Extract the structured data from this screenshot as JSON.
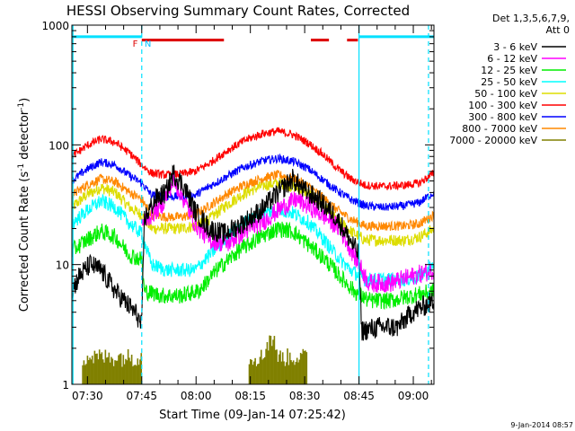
{
  "chart_data": {
    "type": "line",
    "title": "HESSI Observing Summary Count Rates, Corrected",
    "xlabel": "Start Time (09-Jan-14 07:25:42)",
    "ylabel_main": "Corrected Count Rate (s",
    "ylabel_sup1": "-1",
    "ylabel_mid": " detector",
    "ylabel_sup2": "-1",
    "ylabel_end": ")",
    "footer": "9-Jan-2014 08:57",
    "yscale": "log",
    "ylim": [
      1,
      1000
    ],
    "xlim_minutes": [
      0,
      100
    ],
    "x_unit_note_minutes_after_07_25_42": true,
    "xticks": [
      {
        "t": 4.3,
        "label": "07:30"
      },
      {
        "t": 19.3,
        "label": "07:45"
      },
      {
        "t": 34.3,
        "label": "08:00"
      },
      {
        "t": 49.3,
        "label": "08:15"
      },
      {
        "t": 64.3,
        "label": "08:30"
      },
      {
        "t": 79.3,
        "label": "08:45"
      },
      {
        "t": 94.3,
        "label": "09:00"
      }
    ],
    "yticks": [
      {
        "v": 1,
        "label": "1"
      },
      {
        "v": 10,
        "label": "10"
      },
      {
        "v": 100,
        "label": "100"
      },
      {
        "v": 1000,
        "label": "1000"
      }
    ],
    "legend": {
      "header1": "Det 1,3,5,6,7,9,",
      "header2": "Att 0",
      "placement": "outside-right"
    },
    "series": [
      {
        "name": "3 - 6 keV",
        "color": "#000000",
        "noise": 0.09,
        "points": [
          [
            0,
            6
          ],
          [
            2,
            8
          ],
          [
            5,
            10
          ],
          [
            8,
            9
          ],
          [
            12,
            6
          ],
          [
            18,
            3.8
          ],
          [
            19.3,
            3
          ],
          [
            20,
            24
          ],
          [
            23,
            35
          ],
          [
            26,
            40
          ],
          [
            28,
            58
          ],
          [
            31,
            45
          ],
          [
            34,
            28
          ],
          [
            38,
            20
          ],
          [
            42,
            18
          ],
          [
            47,
            22
          ],
          [
            52,
            28
          ],
          [
            57,
            40
          ],
          [
            61,
            52
          ],
          [
            64,
            42
          ],
          [
            68,
            35
          ],
          [
            73,
            25
          ],
          [
            78,
            14
          ],
          [
            79.3,
            12
          ],
          [
            80,
            2.8
          ],
          [
            85,
            3
          ],
          [
            90,
            3
          ],
          [
            94,
            4
          ],
          [
            100,
            5
          ]
        ]
      },
      {
        "name": "6 - 12 keV",
        "color": "#ff00ff",
        "noise": 0.08,
        "points": [
          [
            19.3,
            22
          ],
          [
            22,
            26
          ],
          [
            25,
            32
          ],
          [
            28,
            50
          ],
          [
            30,
            40
          ],
          [
            34,
            22
          ],
          [
            38,
            16
          ],
          [
            43,
            15
          ],
          [
            48,
            19
          ],
          [
            53,
            23
          ],
          [
            58,
            30
          ],
          [
            62,
            35
          ],
          [
            66,
            30
          ],
          [
            70,
            25
          ],
          [
            74,
            20
          ],
          [
            79.3,
            10
          ],
          [
            82,
            7
          ],
          [
            88,
            7
          ],
          [
            94,
            8
          ],
          [
            100,
            9
          ]
        ]
      },
      {
        "name": "12 - 25 keV",
        "color": "#00ee00",
        "noise": 0.07,
        "points": [
          [
            0,
            13
          ],
          [
            4,
            16
          ],
          [
            8,
            19
          ],
          [
            12,
            17
          ],
          [
            16,
            12
          ],
          [
            19.3,
            11
          ],
          [
            20,
            6
          ],
          [
            25,
            5.5
          ],
          [
            30,
            5.5
          ],
          [
            35,
            6
          ],
          [
            40,
            9
          ],
          [
            46,
            13
          ],
          [
            52,
            17
          ],
          [
            57,
            20
          ],
          [
            61,
            19
          ],
          [
            65,
            15
          ],
          [
            70,
            11
          ],
          [
            74,
            8
          ],
          [
            78,
            6
          ],
          [
            82,
            5
          ],
          [
            88,
            5
          ],
          [
            94,
            5.5
          ],
          [
            100,
            6
          ]
        ]
      },
      {
        "name": "25 - 50 keV",
        "color": "#00ffff",
        "noise": 0.06,
        "points": [
          [
            0,
            22
          ],
          [
            4,
            28
          ],
          [
            8,
            34
          ],
          [
            12,
            30
          ],
          [
            16,
            22
          ],
          [
            19.3,
            18
          ],
          [
            22,
            10
          ],
          [
            26,
            9
          ],
          [
            30,
            9
          ],
          [
            34,
            9
          ],
          [
            38,
            12
          ],
          [
            43,
            17
          ],
          [
            48,
            23
          ],
          [
            53,
            27
          ],
          [
            57,
            29
          ],
          [
            61,
            27
          ],
          [
            65,
            23
          ],
          [
            69,
            17
          ],
          [
            73,
            12
          ],
          [
            77,
            9
          ],
          [
            81,
            7.5
          ],
          [
            86,
            7.5
          ],
          [
            92,
            7.5
          ],
          [
            96,
            8
          ],
          [
            100,
            10
          ]
        ]
      },
      {
        "name": "50 - 100 keV",
        "color": "#dddd00",
        "noise": 0.05,
        "points": [
          [
            0,
            30
          ],
          [
            4,
            38
          ],
          [
            8,
            44
          ],
          [
            12,
            40
          ],
          [
            16,
            30
          ],
          [
            19.3,
            26
          ],
          [
            22,
            20
          ],
          [
            26,
            20
          ],
          [
            30,
            20
          ],
          [
            34,
            21
          ],
          [
            38,
            24
          ],
          [
            43,
            32
          ],
          [
            48,
            40
          ],
          [
            53,
            46
          ],
          [
            57,
            48
          ],
          [
            61,
            45
          ],
          [
            65,
            40
          ],
          [
            69,
            32
          ],
          [
            73,
            24
          ],
          [
            77,
            19
          ],
          [
            81,
            16
          ],
          [
            86,
            16
          ],
          [
            92,
            16
          ],
          [
            96,
            17
          ],
          [
            100,
            20
          ]
        ]
      },
      {
        "name": "100 - 300 keV",
        "color": "#ff0000",
        "noise": 0.035,
        "points": [
          [
            0,
            80
          ],
          [
            4,
            98
          ],
          [
            8,
            112
          ],
          [
            12,
            105
          ],
          [
            16,
            85
          ],
          [
            19.3,
            68
          ],
          [
            22,
            58
          ],
          [
            26,
            56
          ],
          [
            30,
            57
          ],
          [
            34,
            60
          ],
          [
            38,
            70
          ],
          [
            43,
            90
          ],
          [
            48,
            110
          ],
          [
            53,
            125
          ],
          [
            57,
            130
          ],
          [
            61,
            122
          ],
          [
            65,
            105
          ],
          [
            69,
            85
          ],
          [
            73,
            65
          ],
          [
            77,
            52
          ],
          [
            81,
            46
          ],
          [
            86,
            45
          ],
          [
            92,
            46
          ],
          [
            96,
            48
          ],
          [
            100,
            58
          ]
        ]
      },
      {
        "name": "300 - 800 keV",
        "color": "#0000ff",
        "noise": 0.035,
        "points": [
          [
            0,
            50
          ],
          [
            4,
            62
          ],
          [
            8,
            72
          ],
          [
            12,
            68
          ],
          [
            16,
            55
          ],
          [
            19.3,
            48
          ],
          [
            22,
            38
          ],
          [
            26,
            37
          ],
          [
            30,
            37
          ],
          [
            34,
            38
          ],
          [
            38,
            45
          ],
          [
            43,
            55
          ],
          [
            48,
            66
          ],
          [
            53,
            74
          ],
          [
            57,
            77
          ],
          [
            61,
            73
          ],
          [
            65,
            64
          ],
          [
            69,
            52
          ],
          [
            73,
            42
          ],
          [
            77,
            35
          ],
          [
            81,
            31
          ],
          [
            86,
            30
          ],
          [
            92,
            31
          ],
          [
            96,
            33
          ],
          [
            100,
            40
          ]
        ]
      },
      {
        "name": "800 - 7000 keV",
        "color": "#ff8800",
        "noise": 0.04,
        "points": [
          [
            0,
            38
          ],
          [
            4,
            46
          ],
          [
            8,
            52
          ],
          [
            12,
            49
          ],
          [
            16,
            40
          ],
          [
            19.3,
            35
          ],
          [
            22,
            26
          ],
          [
            26,
            25
          ],
          [
            30,
            25
          ],
          [
            34,
            26
          ],
          [
            38,
            31
          ],
          [
            43,
            39
          ],
          [
            48,
            47
          ],
          [
            53,
            53
          ],
          [
            57,
            56
          ],
          [
            61,
            53
          ],
          [
            65,
            46
          ],
          [
            69,
            37
          ],
          [
            73,
            29
          ],
          [
            77,
            24
          ],
          [
            81,
            21
          ],
          [
            86,
            21
          ],
          [
            92,
            21
          ],
          [
            96,
            22
          ],
          [
            100,
            26
          ]
        ]
      },
      {
        "name": "7000 - 20000 keV",
        "color": "#808000",
        "noise": 0.0,
        "bars_ranges": [
          [
            3,
            19.3
          ],
          [
            49,
            65
          ]
        ],
        "bar_max": 2.0,
        "bar_peak": 3.0
      }
    ],
    "attenuator_bar": {
      "color": "#00e0ff",
      "segments": [
        [
          0,
          19.3
        ],
        [
          79.3,
          100
        ]
      ],
      "value": 800
    },
    "flare_bar": {
      "color": "#dd0000",
      "segments": [
        [
          19.3,
          42
        ],
        [
          66,
          71
        ],
        [
          76,
          79
        ]
      ],
      "value": 750
    },
    "markers": [
      {
        "t": 17.5,
        "label": "F",
        "color": "#dd0000"
      },
      {
        "t": 21.0,
        "label": "N",
        "color": "#00c0ff"
      }
    ],
    "night_lines": {
      "color": "#00e0ff",
      "solid": [
        0.3,
        79.3
      ],
      "dashed": [
        19.3,
        98.5
      ]
    }
  }
}
